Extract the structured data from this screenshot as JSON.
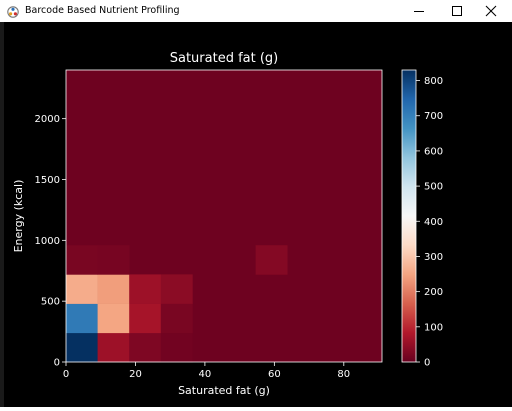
{
  "window": {
    "title": "Barcode Based Nutrient Profiling",
    "controls": [
      "minimize-icon",
      "maximize-icon",
      "close-icon"
    ]
  },
  "chart_data": {
    "type": "heatmap",
    "title": "Saturated fat (g)",
    "xlabel": "Saturated fat (g)",
    "ylabel": "Energy (kcal)",
    "xlim": [
      0,
      91
    ],
    "ylim": [
      0,
      2400
    ],
    "x_ticks": [
      0,
      20,
      40,
      60,
      80
    ],
    "y_ticks": [
      0,
      500,
      1000,
      1500,
      2000
    ],
    "colorbar": {
      "colormap": "RdBu",
      "range": [
        0,
        830
      ],
      "ticks": [
        0,
        100,
        200,
        300,
        400,
        500,
        600,
        700,
        800
      ]
    },
    "bin_size": {
      "x": 9.1,
      "y": 240
    },
    "background_count": 8,
    "cells": [
      {
        "x": 0,
        "y": 0,
        "count": 830
      },
      {
        "x": 9.1,
        "y": 0,
        "count": 60
      },
      {
        "x": 18.2,
        "y": 0,
        "count": 25
      },
      {
        "x": 27.3,
        "y": 0,
        "count": 12
      },
      {
        "x": 0,
        "y": 240,
        "count": 710
      },
      {
        "x": 9.1,
        "y": 240,
        "count": 250
      },
      {
        "x": 18.2,
        "y": 240,
        "count": 70
      },
      {
        "x": 27.3,
        "y": 240,
        "count": 20
      },
      {
        "x": 0,
        "y": 480,
        "count": 260
      },
      {
        "x": 9.1,
        "y": 480,
        "count": 240
      },
      {
        "x": 18.2,
        "y": 480,
        "count": 60
      },
      {
        "x": 27.3,
        "y": 480,
        "count": 40
      },
      {
        "x": 0,
        "y": 720,
        "count": 20
      },
      {
        "x": 9.1,
        "y": 720,
        "count": 18
      },
      {
        "x": 54.6,
        "y": 720,
        "count": 32
      }
    ]
  }
}
